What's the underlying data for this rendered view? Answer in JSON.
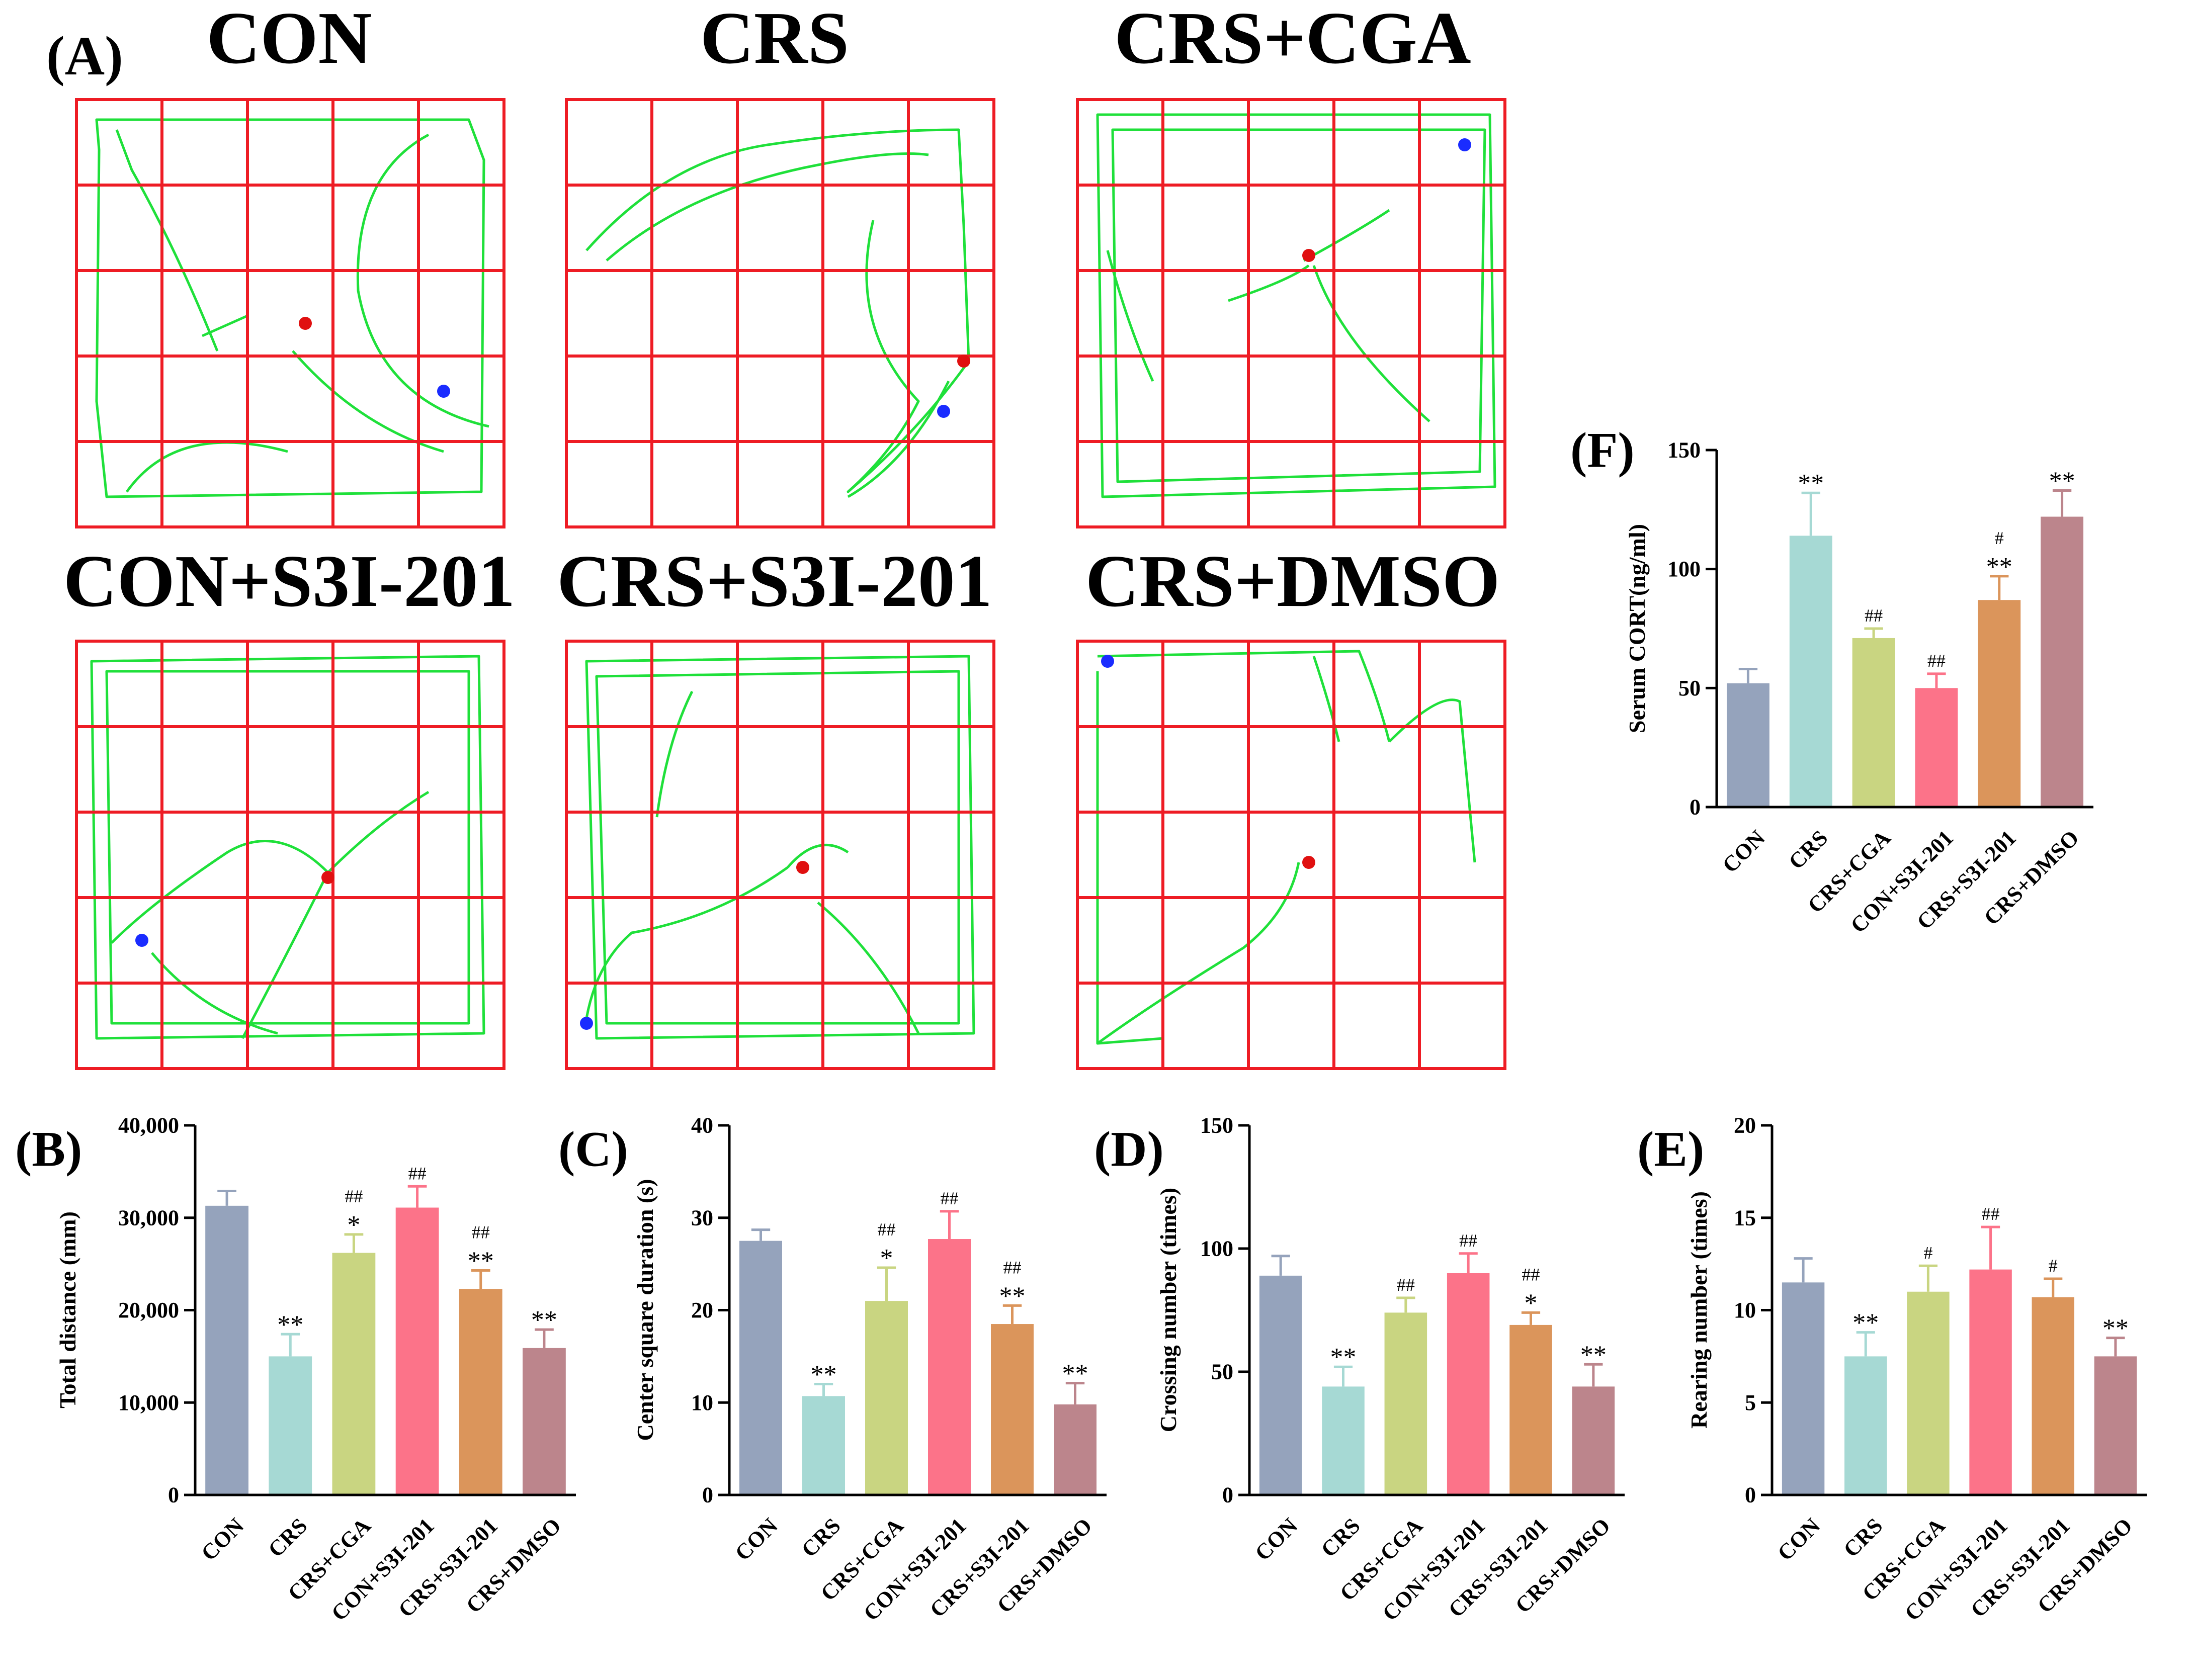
{
  "figure": {
    "panel_a": {
      "label": "(A)",
      "groups": [
        "CON",
        "CRS",
        "CRS+CGA",
        "CON+S3I-201",
        "CRS+S3I-201",
        "CRS+DMSO"
      ],
      "track_color": "#1fe03a",
      "grid_color": "#ee1c24",
      "start_color": "#e01010",
      "end_color": "#1a2cff"
    },
    "bar_colors": [
      "#95a3bc",
      "#a6d9d4",
      "#c9d581",
      "#fc7389",
      "#db955b",
      "#bc858c"
    ]
  },
  "chart_data": [
    {
      "id": "B",
      "label": "(B)",
      "type": "bar",
      "ylabel": "Total distance (mm)",
      "categories": [
        "CON",
        "CRS",
        "CRS+CGA",
        "CON+S3I-201",
        "CRS+S3I-201",
        "CRS+DMSO"
      ],
      "values": [
        31300,
        15000,
        26200,
        31100,
        22300,
        15900
      ],
      "errors": [
        1600,
        2400,
        2000,
        2300,
        2000,
        2000
      ],
      "ylim": [
        0,
        40000
      ],
      "ticks": [
        "0",
        "10,000",
        "20,000",
        "30,000",
        "40,000"
      ],
      "tick_values": [
        0,
        10000,
        20000,
        30000,
        40000
      ],
      "sig_lower": [
        "",
        "**",
        "*",
        "",
        "**",
        "**"
      ],
      "sig_upper": [
        "",
        "",
        "##",
        "##",
        "##",
        ""
      ]
    },
    {
      "id": "C",
      "label": "(C)",
      "type": "bar",
      "ylabel": "Center square duration (s)",
      "categories": [
        "CON",
        "CRS",
        "CRS+CGA",
        "CON+S3I-201",
        "CRS+S3I-201",
        "CRS+DMSO"
      ],
      "values": [
        27.5,
        10.7,
        21.0,
        27.7,
        18.5,
        9.8
      ],
      "errors": [
        1.2,
        1.3,
        3.6,
        3.0,
        2.0,
        2.3
      ],
      "ylim": [
        0,
        40
      ],
      "ticks": [
        "0",
        "10",
        "20",
        "30",
        "40"
      ],
      "tick_values": [
        0,
        10,
        20,
        30,
        40
      ],
      "sig_lower": [
        "",
        "**",
        "*",
        "",
        "**",
        "**"
      ],
      "sig_upper": [
        "",
        "",
        "##",
        "##",
        "##",
        ""
      ]
    },
    {
      "id": "D",
      "label": "(D)",
      "type": "bar",
      "ylabel": "Crossing number (times)",
      "categories": [
        "CON",
        "CRS",
        "CRS+CGA",
        "CON+S3I-201",
        "CRS+S3I-201",
        "CRS+DMSO"
      ],
      "values": [
        89,
        44,
        74,
        90,
        69,
        44
      ],
      "errors": [
        8,
        8,
        6,
        8,
        5,
        9
      ],
      "ylim": [
        0,
        150
      ],
      "ticks": [
        "0",
        "50",
        "100",
        "150"
      ],
      "tick_values": [
        0,
        50,
        100,
        150
      ],
      "sig_lower": [
        "",
        "**",
        "",
        "",
        "*",
        "**"
      ],
      "sig_upper": [
        "",
        "",
        "##",
        "##",
        "##",
        ""
      ]
    },
    {
      "id": "E",
      "label": "(E)",
      "type": "bar",
      "ylabel": "Rearing number (times)",
      "categories": [
        "CON",
        "CRS",
        "CRS+CGA",
        "CON+S3I-201",
        "CRS+S3I-201",
        "CRS+DMSO"
      ],
      "values": [
        11.5,
        7.5,
        11.0,
        12.2,
        10.7,
        7.5
      ],
      "errors": [
        1.3,
        1.3,
        1.4,
        2.3,
        1.0,
        1.0
      ],
      "ylim": [
        0,
        20
      ],
      "ticks": [
        "0",
        "5",
        "10",
        "15",
        "20"
      ],
      "tick_values": [
        0,
        5,
        10,
        15,
        20
      ],
      "sig_lower": [
        "",
        "**",
        "",
        "",
        "",
        "**"
      ],
      "sig_upper": [
        "",
        "",
        "#",
        "##",
        "#",
        ""
      ]
    },
    {
      "id": "F",
      "label": "(F)",
      "type": "bar",
      "ylabel": "Serum CORT(ng/ml)",
      "categories": [
        "CON",
        "CRS",
        "CRS+CGA",
        "CON+S3I-201",
        "CRS+S3I-201",
        "CRS+DMSO"
      ],
      "values": [
        52,
        114,
        71,
        50,
        87,
        122
      ],
      "errors": [
        6,
        18,
        4,
        6,
        10,
        11
      ],
      "ylim": [
        0,
        150
      ],
      "ticks": [
        "0",
        "50",
        "100",
        "150"
      ],
      "tick_values": [
        0,
        50,
        100,
        150
      ],
      "sig_lower": [
        "",
        "**",
        "",
        "",
        "**",
        "**"
      ],
      "sig_upper": [
        "",
        "",
        "##",
        "##",
        "#",
        ""
      ]
    }
  ]
}
